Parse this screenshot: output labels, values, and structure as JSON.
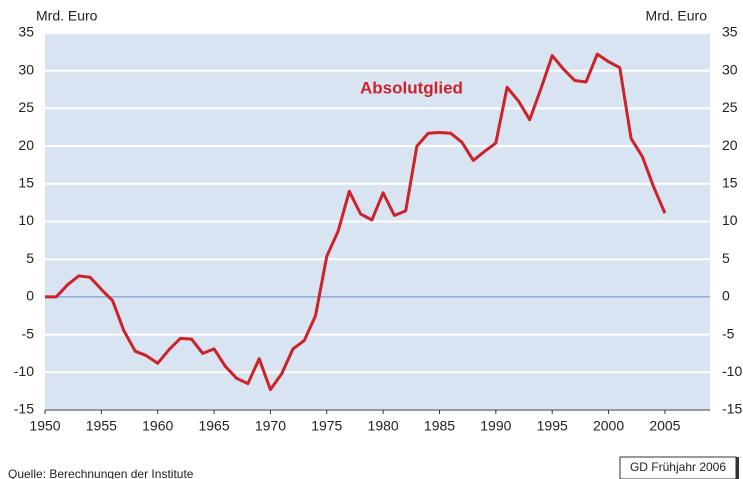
{
  "chart_data": {
    "type": "line",
    "y_label": "Mrd. Euro",
    "y2_label": "Mrd. Euro",
    "annotation": "Absolutglied",
    "source": "Quelle:  Berechnungen der Institute",
    "credit": "GD Frühjahr 2006",
    "x": [
      1950,
      1951,
      1952,
      1953,
      1954,
      1955,
      1956,
      1957,
      1958,
      1959,
      1960,
      1961,
      1962,
      1963,
      1964,
      1965,
      1966,
      1967,
      1968,
      1969,
      1970,
      1971,
      1972,
      1973,
      1974,
      1975,
      1976,
      1977,
      1978,
      1979,
      1980,
      1981,
      1982,
      1983,
      1984,
      1985,
      1986,
      1987,
      1988,
      1989,
      1990,
      1991,
      1992,
      1993,
      1994,
      1995,
      1996,
      1997,
      1998,
      1999,
      2000,
      2001,
      2002,
      2003,
      2004,
      2005
    ],
    "series": [
      {
        "name": "Absolutglied",
        "color": "#cc2229",
        "values": [
          0,
          0,
          1.6,
          2.8,
          2.6,
          1,
          -0.5,
          -4.5,
          -7.2,
          -7.8,
          -8.8,
          -7,
          -5.5,
          -5.6,
          -7.5,
          -6.9,
          -9.2,
          -10.8,
          -11.5,
          -8.2,
          -12.3,
          -10.2,
          -6.9,
          -5.8,
          -2.5,
          5.4,
          8.7,
          14,
          11,
          10.2,
          13.8,
          10.8,
          11.4,
          20,
          21.7,
          21.8,
          21.7,
          20.5,
          18.1,
          19.3,
          20.4,
          27.8,
          26,
          23.5,
          27.6,
          32,
          30.2,
          28.7,
          28.5,
          32.2,
          31.2,
          30.4,
          21,
          18.6,
          14.6,
          11.1
        ]
      }
    ],
    "xlim": [
      1950,
      2009
    ],
    "xticks": [
      1950,
      1955,
      1960,
      1965,
      1970,
      1975,
      1980,
      1985,
      1990,
      1995,
      2000,
      2005
    ],
    "ylim": [
      -15,
      35
    ],
    "yticks": [
      -15,
      -10,
      -5,
      0,
      5,
      10,
      15,
      20,
      25,
      30,
      35
    ],
    "y2lim": [
      -15,
      35
    ],
    "y2ticks": [
      -15,
      -10,
      -5,
      0,
      5,
      10,
      15,
      20,
      25,
      30,
      35
    ],
    "grid": true,
    "background": "#d9e4f2",
    "zero_line_color": "#7fa6d8"
  }
}
